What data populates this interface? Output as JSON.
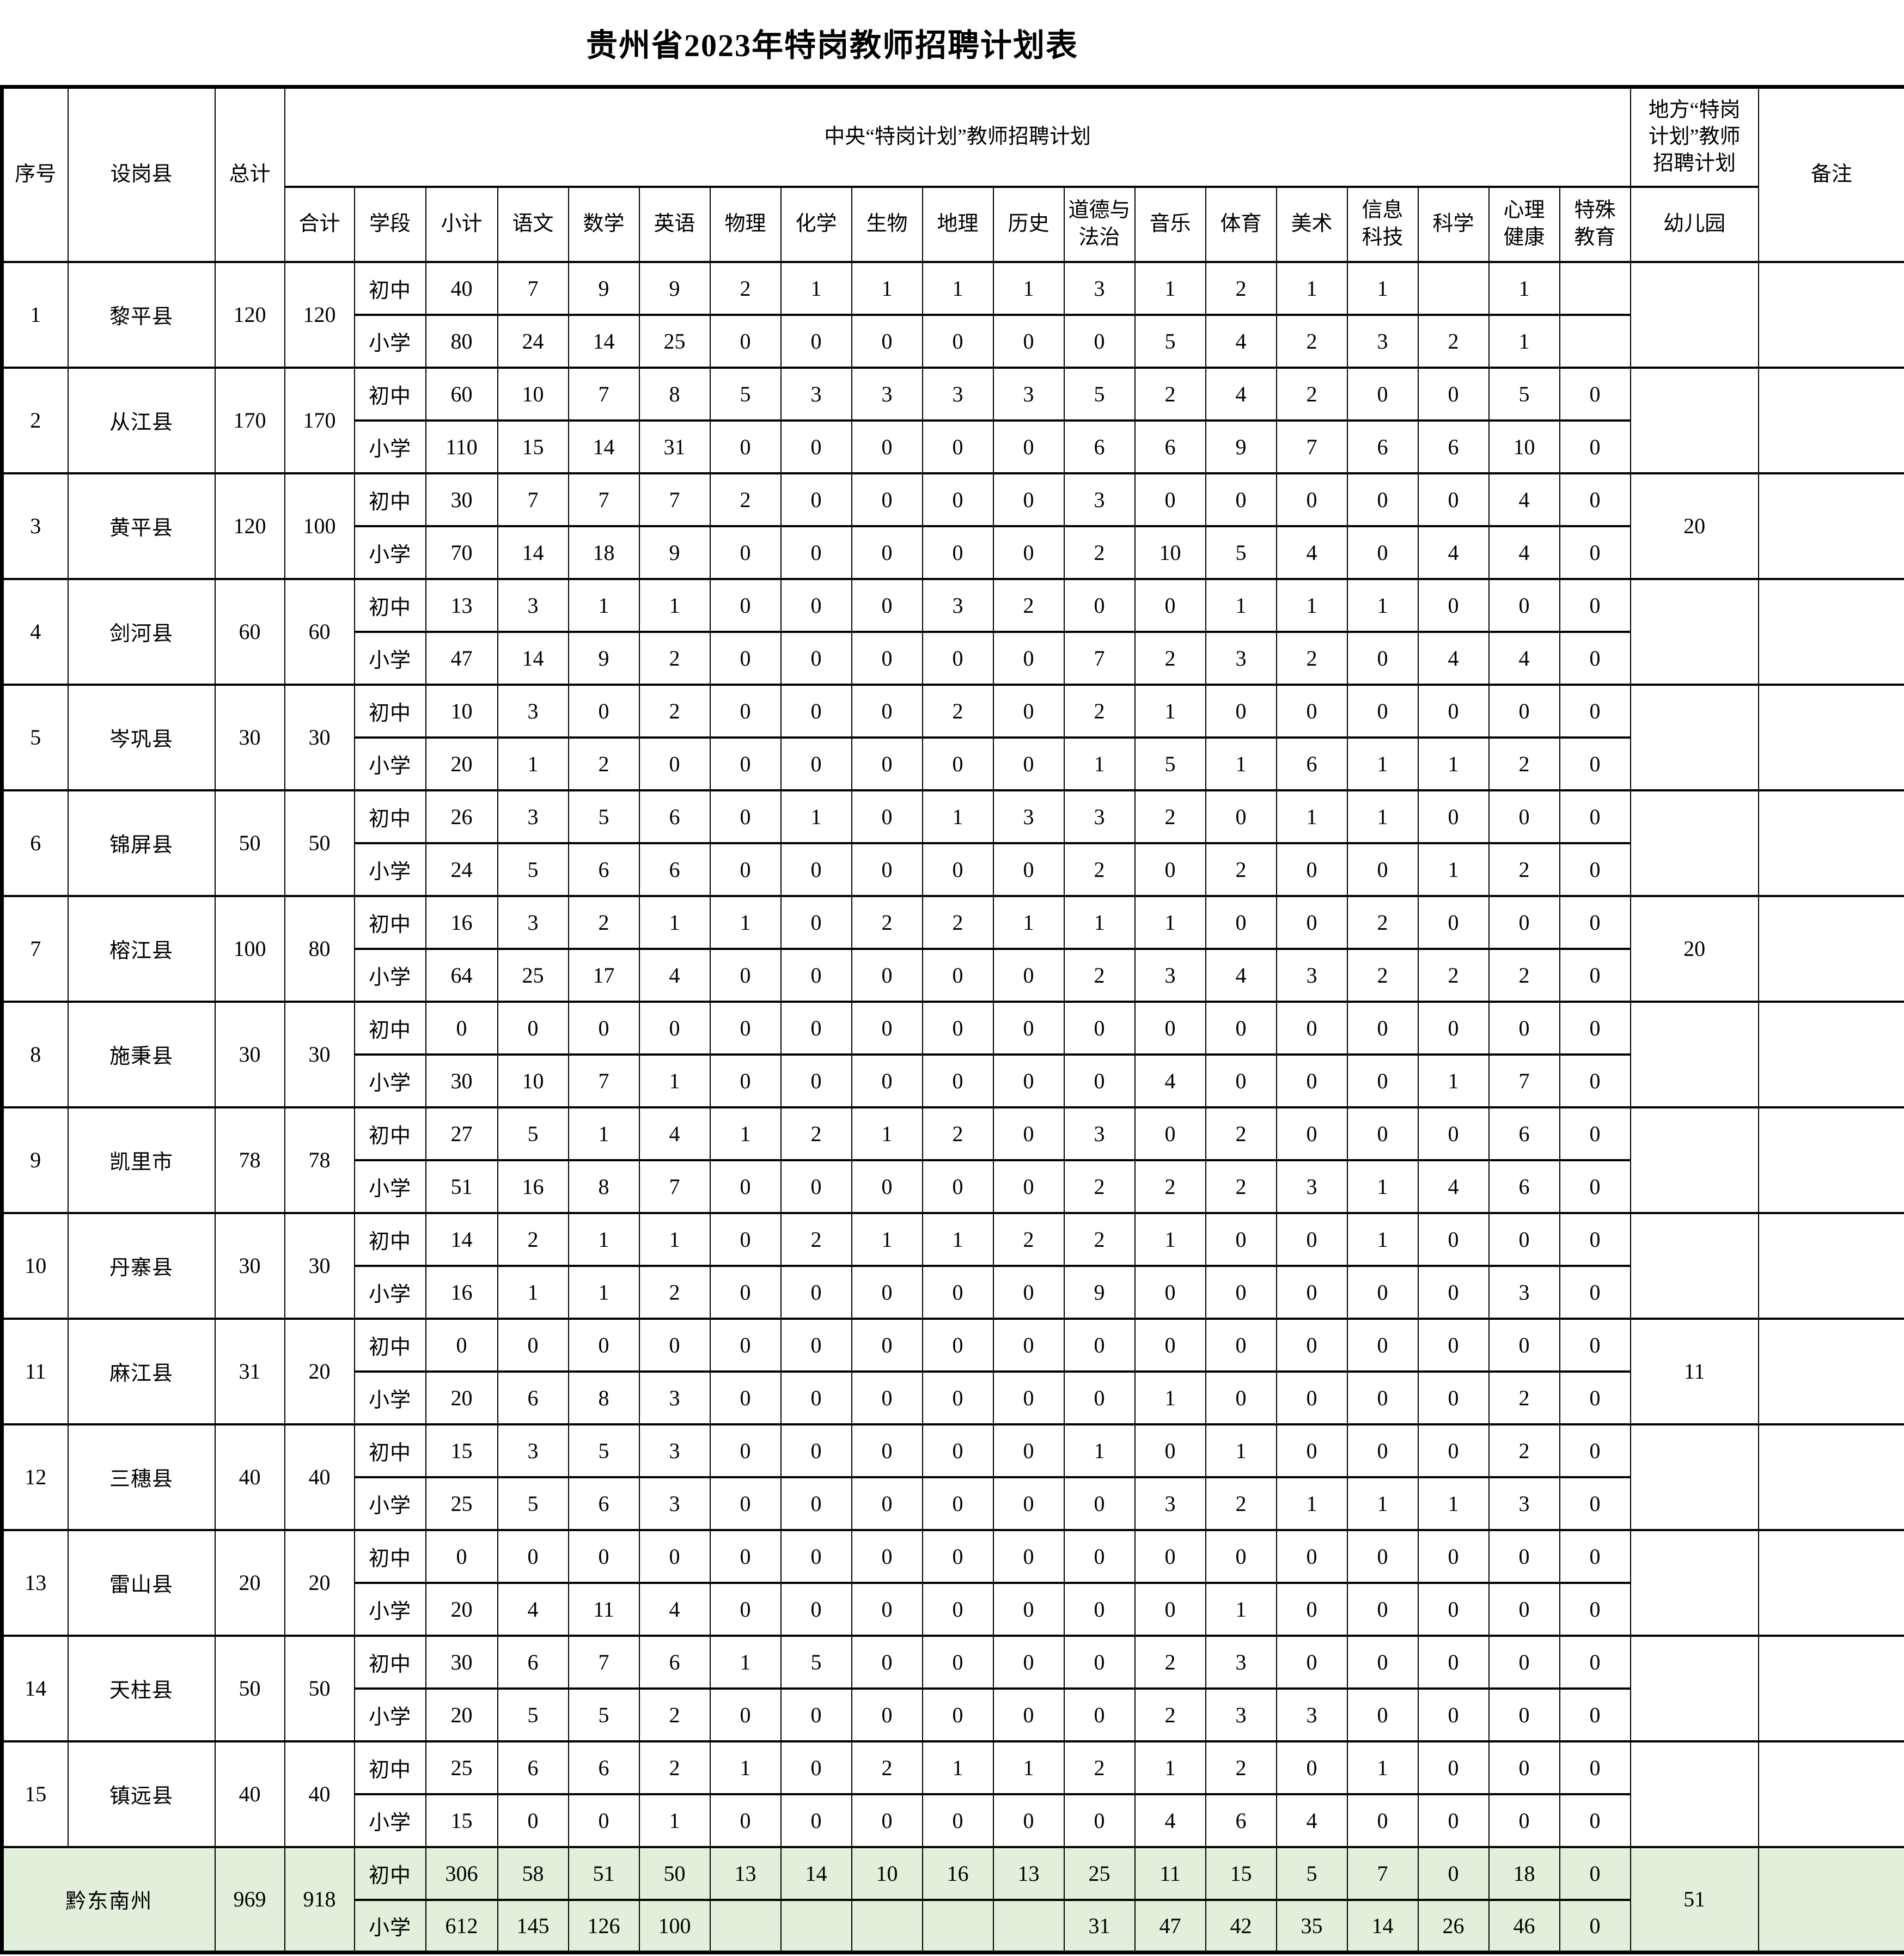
{
  "page": {
    "title": "贵州省2023年特岗教师招聘计划表"
  },
  "table": {
    "header": {
      "col_no": "序号",
      "col_county": "设岗县",
      "col_total": "总计",
      "central_plan": "中央“特岗计划”教师招聘计划",
      "local_plan": "地方“特岗\n计划”教师\n招聘计划",
      "col_remark": "备注",
      "col_sum": "合计",
      "col_stage": "学段",
      "col_subtotal": "小计",
      "subjects": [
        "语文",
        "数学",
        "英语",
        "物理",
        "化学",
        "生物",
        "地理",
        "历史",
        "道德与\n法治",
        "音乐",
        "体育",
        "美术",
        "信息\n科技",
        "科学",
        "心理\n健康",
        "特殊\n教育"
      ],
      "col_kindergarten": "幼儿园"
    },
    "stage_labels": {
      "junior": "初中",
      "primary": "小学"
    },
    "rows": [
      {
        "no": "1",
        "county": "黎平县",
        "total": "120",
        "sum": "120",
        "junior": [
          "40",
          "7",
          "9",
          "9",
          "2",
          "1",
          "1",
          "1",
          "1",
          "3",
          "1",
          "2",
          "1",
          "1",
          "",
          "1",
          ""
        ],
        "primary": [
          "80",
          "24",
          "14",
          "25",
          "0",
          "0",
          "0",
          "0",
          "0",
          "0",
          "5",
          "4",
          "2",
          "3",
          "2",
          "1",
          ""
        ],
        "kindergarten": "",
        "remark": ""
      },
      {
        "no": "2",
        "county": "从江县",
        "total": "170",
        "sum": "170",
        "junior": [
          "60",
          "10",
          "7",
          "8",
          "5",
          "3",
          "3",
          "3",
          "3",
          "5",
          "2",
          "4",
          "2",
          "0",
          "0",
          "5",
          "0"
        ],
        "primary": [
          "110",
          "15",
          "14",
          "31",
          "0",
          "0",
          "0",
          "0",
          "0",
          "6",
          "6",
          "9",
          "7",
          "6",
          "6",
          "10",
          "0"
        ],
        "kindergarten": "",
        "remark": ""
      },
      {
        "no": "3",
        "county": "黄平县",
        "total": "120",
        "sum": "100",
        "junior": [
          "30",
          "7",
          "7",
          "7",
          "2",
          "0",
          "0",
          "0",
          "0",
          "3",
          "0",
          "0",
          "0",
          "0",
          "0",
          "4",
          "0"
        ],
        "primary": [
          "70",
          "14",
          "18",
          "9",
          "0",
          "0",
          "0",
          "0",
          "0",
          "2",
          "10",
          "5",
          "4",
          "0",
          "4",
          "4",
          "0"
        ],
        "kindergarten": "20",
        "remark": ""
      },
      {
        "no": "4",
        "county": "剑河县",
        "total": "60",
        "sum": "60",
        "junior": [
          "13",
          "3",
          "1",
          "1",
          "0",
          "0",
          "0",
          "3",
          "2",
          "0",
          "0",
          "1",
          "1",
          "1",
          "0",
          "0",
          "0"
        ],
        "primary": [
          "47",
          "14",
          "9",
          "2",
          "0",
          "0",
          "0",
          "0",
          "0",
          "7",
          "2",
          "3",
          "2",
          "0",
          "4",
          "4",
          "0"
        ],
        "kindergarten": "",
        "remark": ""
      },
      {
        "no": "5",
        "county": "岑巩县",
        "total": "30",
        "sum": "30",
        "junior": [
          "10",
          "3",
          "0",
          "2",
          "0",
          "0",
          "0",
          "2",
          "0",
          "2",
          "1",
          "0",
          "0",
          "0",
          "0",
          "0",
          "0"
        ],
        "primary": [
          "20",
          "1",
          "2",
          "0",
          "0",
          "0",
          "0",
          "0",
          "0",
          "1",
          "5",
          "1",
          "6",
          "1",
          "1",
          "2",
          "0"
        ],
        "kindergarten": "",
        "remark": ""
      },
      {
        "no": "6",
        "county": "锦屏县",
        "total": "50",
        "sum": "50",
        "junior": [
          "26",
          "3",
          "5",
          "6",
          "0",
          "1",
          "0",
          "1",
          "3",
          "3",
          "2",
          "0",
          "1",
          "1",
          "0",
          "0",
          "0"
        ],
        "primary": [
          "24",
          "5",
          "6",
          "6",
          "0",
          "0",
          "0",
          "0",
          "0",
          "2",
          "0",
          "2",
          "0",
          "0",
          "1",
          "2",
          "0"
        ],
        "kindergarten": "",
        "remark": ""
      },
      {
        "no": "7",
        "county": "榕江县",
        "total": "100",
        "sum": "80",
        "junior": [
          "16",
          "3",
          "2",
          "1",
          "1",
          "0",
          "2",
          "2",
          "1",
          "1",
          "1",
          "0",
          "0",
          "2",
          "0",
          "0",
          "0"
        ],
        "primary": [
          "64",
          "25",
          "17",
          "4",
          "0",
          "0",
          "0",
          "0",
          "0",
          "2",
          "3",
          "4",
          "3",
          "2",
          "2",
          "2",
          "0"
        ],
        "kindergarten": "20",
        "remark": ""
      },
      {
        "no": "8",
        "county": "施秉县",
        "total": "30",
        "sum": "30",
        "junior": [
          "0",
          "0",
          "0",
          "0",
          "0",
          "0",
          "0",
          "0",
          "0",
          "0",
          "0",
          "0",
          "0",
          "0",
          "0",
          "0",
          "0"
        ],
        "primary": [
          "30",
          "10",
          "7",
          "1",
          "0",
          "0",
          "0",
          "0",
          "0",
          "0",
          "4",
          "0",
          "0",
          "0",
          "1",
          "7",
          "0"
        ],
        "kindergarten": "",
        "remark": ""
      },
      {
        "no": "9",
        "county": "凯里市",
        "total": "78",
        "sum": "78",
        "junior": [
          "27",
          "5",
          "1",
          "4",
          "1",
          "2",
          "1",
          "2",
          "0",
          "3",
          "0",
          "2",
          "0",
          "0",
          "0",
          "6",
          "0"
        ],
        "primary": [
          "51",
          "16",
          "8",
          "7",
          "0",
          "0",
          "0",
          "0",
          "0",
          "2",
          "2",
          "2",
          "3",
          "1",
          "4",
          "6",
          "0"
        ],
        "kindergarten": "",
        "remark": ""
      },
      {
        "no": "10",
        "county": "丹寨县",
        "total": "30",
        "sum": "30",
        "junior": [
          "14",
          "2",
          "1",
          "1",
          "0",
          "2",
          "1",
          "1",
          "2",
          "2",
          "1",
          "0",
          "0",
          "1",
          "0",
          "0",
          "0"
        ],
        "primary": [
          "16",
          "1",
          "1",
          "2",
          "0",
          "0",
          "0",
          "0",
          "0",
          "9",
          "0",
          "0",
          "0",
          "0",
          "0",
          "3",
          "0"
        ],
        "kindergarten": "",
        "remark": ""
      },
      {
        "no": "11",
        "county": "麻江县",
        "total": "31",
        "sum": "20",
        "junior": [
          "0",
          "0",
          "0",
          "0",
          "0",
          "0",
          "0",
          "0",
          "0",
          "0",
          "0",
          "0",
          "0",
          "0",
          "0",
          "0",
          "0"
        ],
        "primary": [
          "20",
          "6",
          "8",
          "3",
          "0",
          "0",
          "0",
          "0",
          "0",
          "0",
          "1",
          "0",
          "0",
          "0",
          "0",
          "2",
          "0"
        ],
        "kindergarten": "11",
        "remark": ""
      },
      {
        "no": "12",
        "county": "三穗县",
        "total": "40",
        "sum": "40",
        "junior": [
          "15",
          "3",
          "5",
          "3",
          "0",
          "0",
          "0",
          "0",
          "0",
          "1",
          "0",
          "1",
          "0",
          "0",
          "0",
          "2",
          "0"
        ],
        "primary": [
          "25",
          "5",
          "6",
          "3",
          "0",
          "0",
          "0",
          "0",
          "0",
          "0",
          "3",
          "2",
          "1",
          "1",
          "1",
          "3",
          "0"
        ],
        "kindergarten": "",
        "remark": ""
      },
      {
        "no": "13",
        "county": "雷山县",
        "total": "20",
        "sum": "20",
        "junior": [
          "0",
          "0",
          "0",
          "0",
          "0",
          "0",
          "0",
          "0",
          "0",
          "0",
          "0",
          "0",
          "0",
          "0",
          "0",
          "0",
          "0"
        ],
        "primary": [
          "20",
          "4",
          "11",
          "4",
          "0",
          "0",
          "0",
          "0",
          "0",
          "0",
          "0",
          "1",
          "0",
          "0",
          "0",
          "0",
          "0"
        ],
        "kindergarten": "",
        "remark": ""
      },
      {
        "no": "14",
        "county": "天柱县",
        "total": "50",
        "sum": "50",
        "junior": [
          "30",
          "6",
          "7",
          "6",
          "1",
          "5",
          "0",
          "0",
          "0",
          "0",
          "2",
          "3",
          "0",
          "0",
          "0",
          "0",
          "0"
        ],
        "primary": [
          "20",
          "5",
          "5",
          "2",
          "0",
          "0",
          "0",
          "0",
          "0",
          "0",
          "2",
          "3",
          "3",
          "0",
          "0",
          "0",
          "0"
        ],
        "kindergarten": "",
        "remark": ""
      },
      {
        "no": "15",
        "county": "镇远县",
        "total": "40",
        "sum": "40",
        "junior": [
          "25",
          "6",
          "6",
          "2",
          "1",
          "0",
          "2",
          "1",
          "1",
          "2",
          "1",
          "2",
          "0",
          "1",
          "0",
          "0",
          "0"
        ],
        "primary": [
          "15",
          "0",
          "0",
          "1",
          "0",
          "0",
          "0",
          "0",
          "0",
          "0",
          "4",
          "6",
          "4",
          "0",
          "0",
          "0",
          "0"
        ],
        "kindergarten": "",
        "remark": ""
      }
    ],
    "summary": {
      "name": "黔东南州",
      "total": "969",
      "sum": "918",
      "junior": [
        "306",
        "58",
        "51",
        "50",
        "13",
        "14",
        "10",
        "16",
        "13",
        "25",
        "11",
        "15",
        "5",
        "7",
        "0",
        "18",
        "0"
      ],
      "primary": [
        "612",
        "145",
        "126",
        "100",
        "",
        "",
        "",
        "",
        "",
        "31",
        "47",
        "42",
        "35",
        "14",
        "26",
        "46",
        "0"
      ],
      "kindergarten": "51",
      "remark": ""
    },
    "colors": {
      "summary_bg": "#e2efda",
      "border": "#000000",
      "page_bg": "#ffffff"
    }
  }
}
